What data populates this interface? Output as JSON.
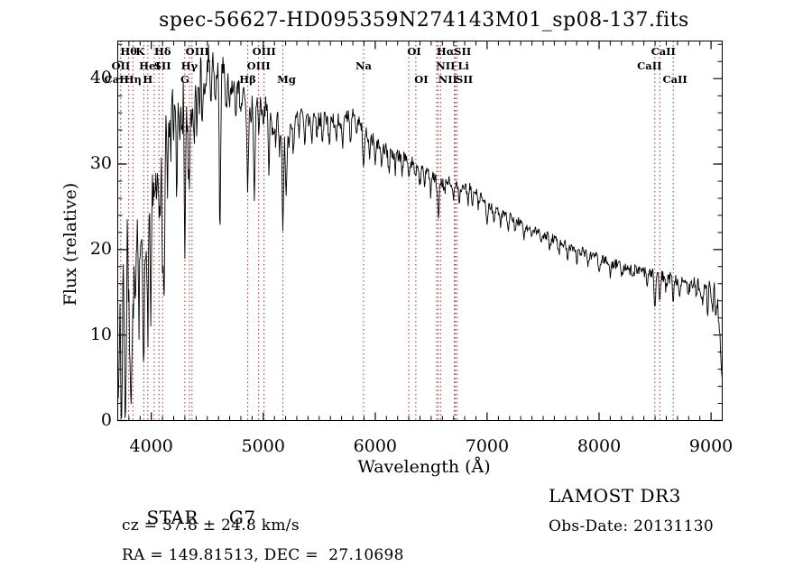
{
  "title": "spec-56627-HD095359N274143M01_sp08-137.fits",
  "colors": {
    "ink": "#000000",
    "background": "#ffffff",
    "marker_line": "#9b3030"
  },
  "footer": {
    "object_type": "STAR",
    "subclass": "G7",
    "cz_text": "cz = 37.8 ± 24.8 km/s",
    "radec_text": "RA = 149.81513, DEC =  27.10698",
    "survey": "LAMOST DR3",
    "obs_date_text": "Obs-Date: 20131130"
  },
  "chart_data": {
    "type": "line",
    "title": "spec-56627-HD095359N274143M01_sp08-137.fits",
    "xlabel": "Wavelength (Å)",
    "ylabel": "Flux (relative)",
    "xlim": [
      3700,
      9100
    ],
    "ylim": [
      0,
      44.4
    ],
    "x_ticks": [
      4000,
      5000,
      6000,
      7000,
      8000,
      9000
    ],
    "y_ticks": [
      0,
      10,
      20,
      30,
      40
    ],
    "x_minor_step": 100,
    "y_minor_step": 2,
    "grid": false,
    "marker_line_color": "#9b3030",
    "spectral_lines": [
      {
        "label": "Hθ",
        "wl": 3798,
        "row": 1
      },
      {
        "label": "K",
        "wl": 3933,
        "row": 1,
        "dx": -4
      },
      {
        "label": "Hδ",
        "wl": 4101,
        "row": 1
      },
      {
        "label": "OIII",
        "wl": 4363,
        "row": 1,
        "dx": 6
      },
      {
        "label": "OIII",
        "wl": 5007,
        "row": 1
      },
      {
        "label": "OI",
        "wl": 6300,
        "row": 1,
        "dx": 6
      },
      {
        "label": "Hα",
        "wl": 6563,
        "row": 1,
        "dx": 8
      },
      {
        "label": "SII",
        "wl": 6716,
        "row": 1,
        "dx": 8
      },
      {
        "label": "CaII",
        "wl": 8542,
        "row": 1,
        "dx": 4
      },
      {
        "label": "OII",
        "wl": 3727,
        "row": 2
      },
      {
        "label": "HeI",
        "wl": 4026,
        "row": 2,
        "dx": -5
      },
      {
        "label": "SII",
        "wl": 4068,
        "row": 2,
        "dx": 4
      },
      {
        "label": "Hγ",
        "wl": 4340,
        "row": 2
      },
      {
        "label": "OIII",
        "wl": 4959,
        "row": 2
      },
      {
        "label": "Na",
        "wl": 5896,
        "row": 2
      },
      {
        "label": "NII",
        "wl": 6548,
        "row": 2,
        "dx": 10
      },
      {
        "label": "Li",
        "wl": 6708,
        "row": 2,
        "dx": 10
      },
      {
        "label": "CaII",
        "wl": 8498,
        "row": 2,
        "dx": -6
      },
      {
        "label": "CaII",
        "wl": 3706,
        "row": 3,
        "dx": -2,
        "no_line": true
      },
      {
        "label": "Hη",
        "wl": 3835,
        "row": 3
      },
      {
        "label": "H",
        "wl": 3968,
        "row": 3
      },
      {
        "label": "G",
        "wl": 4300,
        "row": 3
      },
      {
        "label": "Hβ",
        "wl": 4861,
        "row": 3
      },
      {
        "label": "Mg",
        "wl": 5175,
        "row": 3,
        "dx": 4
      },
      {
        "label": "OI",
        "wl": 6363,
        "row": 3,
        "dx": 6
      },
      {
        "label": "NII",
        "wl": 6584,
        "row": 3,
        "dx": 8
      },
      {
        "label": "SII",
        "wl": 6731,
        "row": 3,
        "dx": 8
      },
      {
        "label": "CaII",
        "wl": 8662,
        "row": 3,
        "dx": 2
      }
    ],
    "series": [
      {
        "name": "flux",
        "continuum": [
          [
            3700,
            24
          ],
          [
            3710,
            30
          ],
          [
            3725,
            32
          ],
          [
            3745,
            33
          ],
          [
            3760,
            31
          ],
          [
            3780,
            33
          ],
          [
            3800,
            31
          ],
          [
            3815,
            29.5
          ],
          [
            3830,
            31
          ],
          [
            3850,
            30
          ],
          [
            3870,
            33
          ],
          [
            3890,
            31
          ],
          [
            3910,
            33
          ],
          [
            3930,
            29
          ],
          [
            3950,
            31
          ],
          [
            3970,
            30
          ],
          [
            3990,
            34
          ],
          [
            4010,
            35
          ],
          [
            4040,
            36
          ],
          [
            4070,
            35
          ],
          [
            4100,
            34
          ],
          [
            4130,
            37
          ],
          [
            4160,
            38
          ],
          [
            4190,
            40
          ],
          [
            4220,
            40
          ],
          [
            4250,
            41
          ],
          [
            4280,
            40
          ],
          [
            4310,
            39
          ],
          [
            4340,
            40
          ],
          [
            4370,
            41
          ],
          [
            4400,
            41.5
          ],
          [
            4430,
            43
          ],
          [
            4460,
            42.5
          ],
          [
            4490,
            42
          ],
          [
            4520,
            43
          ],
          [
            4550,
            42.5
          ],
          [
            4580,
            41
          ],
          [
            4610,
            41.5
          ],
          [
            4640,
            41.5
          ],
          [
            4670,
            40.5
          ],
          [
            4700,
            40
          ],
          [
            4740,
            39
          ],
          [
            4780,
            38.5
          ],
          [
            4820,
            38
          ],
          [
            4861,
            36.5
          ],
          [
            4900,
            38
          ],
          [
            4940,
            37.5
          ],
          [
            4980,
            37
          ],
          [
            5020,
            36.8
          ],
          [
            5060,
            36.4
          ],
          [
            5100,
            36
          ],
          [
            5140,
            35
          ],
          [
            5175,
            33.5
          ],
          [
            5220,
            35
          ],
          [
            5260,
            35.5
          ],
          [
            5300,
            36
          ],
          [
            5350,
            35.6
          ],
          [
            5400,
            35.2
          ],
          [
            5450,
            35.6
          ],
          [
            5500,
            35.3
          ],
          [
            5550,
            35.6
          ],
          [
            5600,
            34.8
          ],
          [
            5650,
            35.2
          ],
          [
            5700,
            34.8
          ],
          [
            5750,
            35.4
          ],
          [
            5800,
            35.8
          ],
          [
            5850,
            35.2
          ],
          [
            5896,
            33.8
          ],
          [
            5930,
            33.6
          ],
          [
            5970,
            33
          ],
          [
            6000,
            32.6
          ],
          [
            6050,
            32
          ],
          [
            6100,
            31.6
          ],
          [
            6150,
            31.2
          ],
          [
            6200,
            31
          ],
          [
            6250,
            30.8
          ],
          [
            6300,
            30.4
          ],
          [
            6350,
            30
          ],
          [
            6400,
            29.6
          ],
          [
            6450,
            29.2
          ],
          [
            6500,
            28.8
          ],
          [
            6540,
            28.2
          ],
          [
            6563,
            27.2
          ],
          [
            6590,
            27.8
          ],
          [
            6620,
            28.2
          ],
          [
            6660,
            28
          ],
          [
            6700,
            27.8
          ],
          [
            6750,
            27.4
          ],
          [
            6800,
            27.2
          ],
          [
            6850,
            27.4
          ],
          [
            6900,
            26.8
          ],
          [
            6950,
            26
          ],
          [
            7000,
            25.2
          ],
          [
            7050,
            24.8
          ],
          [
            7100,
            24.4
          ],
          [
            7150,
            24.2
          ],
          [
            7200,
            23.9
          ],
          [
            7250,
            23.5
          ],
          [
            7300,
            23.1
          ],
          [
            7350,
            22.8
          ],
          [
            7400,
            22.5
          ],
          [
            7450,
            22.2
          ],
          [
            7500,
            21.8
          ],
          [
            7550,
            21.5
          ],
          [
            7600,
            21.2
          ],
          [
            7650,
            20.9
          ],
          [
            7700,
            20.6
          ],
          [
            7750,
            20.3
          ],
          [
            7800,
            20.1
          ],
          [
            7850,
            19.8
          ],
          [
            7900,
            19.5
          ],
          [
            7950,
            19.3
          ],
          [
            8000,
            19
          ],
          [
            8100,
            18.5
          ],
          [
            8200,
            18
          ],
          [
            8300,
            17.6
          ],
          [
            8400,
            17.3
          ],
          [
            8500,
            17.1
          ],
          [
            8600,
            16.8
          ],
          [
            8700,
            16.5
          ],
          [
            8800,
            16.3
          ],
          [
            8850,
            16.4
          ],
          [
            8900,
            16
          ],
          [
            8950,
            15.6
          ],
          [
            9000,
            15.7
          ],
          [
            9040,
            15.2
          ],
          [
            9060,
            14
          ],
          [
            9080,
            9
          ],
          [
            9100,
            5
          ]
        ],
        "absorption": [
          [
            3705,
            20
          ],
          [
            3715,
            12
          ],
          [
            3728,
            16
          ],
          [
            3737,
            24
          ],
          [
            3750,
            10
          ],
          [
            3762,
            14
          ],
          [
            3770,
            22
          ],
          [
            3781,
            9
          ],
          [
            3798,
            13
          ],
          [
            3810,
            14
          ],
          [
            3820,
            22
          ],
          [
            3835,
            16
          ],
          [
            3848,
            9
          ],
          [
            3860,
            15
          ],
          [
            3874,
            7
          ],
          [
            3889,
            19
          ],
          [
            3905,
            8
          ],
          [
            3920,
            11
          ],
          [
            3933,
            21
          ],
          [
            3950,
            9
          ],
          [
            3968,
            19
          ],
          [
            3995,
            23
          ],
          [
            4010,
            6
          ],
          [
            4026,
            7
          ],
          [
            4045,
            9
          ],
          [
            4068,
            9
          ],
          [
            4078,
            6
          ],
          [
            4101,
            13
          ],
          [
            4115,
            18
          ],
          [
            4144,
            8
          ],
          [
            4172,
            6
          ],
          [
            4200,
            5
          ],
          [
            4226,
            12
          ],
          [
            4250,
            6
          ],
          [
            4271,
            7
          ],
          [
            4300,
            17
          ],
          [
            4325,
            6
          ],
          [
            4340,
            13
          ],
          [
            4363,
            6
          ],
          [
            4383,
            9
          ],
          [
            4405,
            6
          ],
          [
            4430,
            5
          ],
          [
            4455,
            6
          ],
          [
            4481,
            4
          ],
          [
            4530,
            5
          ],
          [
            4570,
            4
          ],
          [
            4613,
            19
          ],
          [
            4668,
            5
          ],
          [
            4700,
            3.5
          ],
          [
            4755,
            3.5
          ],
          [
            4800,
            3
          ],
          [
            4861,
            10
          ],
          [
            4890,
            3
          ],
          [
            4920,
            11
          ],
          [
            4957,
            3
          ],
          [
            5000,
            3
          ],
          [
            5050,
            8
          ],
          [
            5085,
            3
          ],
          [
            5110,
            3.5
          ],
          [
            5145,
            3
          ],
          [
            5175,
            11
          ],
          [
            5205,
            8
          ],
          [
            5230,
            3
          ],
          [
            5270,
            4.5
          ],
          [
            5320,
            2.5
          ],
          [
            5370,
            3
          ],
          [
            5430,
            3
          ],
          [
            5480,
            2.5
          ],
          [
            5530,
            2.5
          ],
          [
            5590,
            3
          ],
          [
            5650,
            2.5
          ],
          [
            5710,
            2.5
          ],
          [
            5780,
            3
          ],
          [
            5830,
            2.5
          ],
          [
            5896,
            3.5
          ],
          [
            5950,
            2
          ],
          [
            6000,
            2
          ],
          [
            6060,
            2
          ],
          [
            6122,
            2.5
          ],
          [
            6180,
            1.8
          ],
          [
            6240,
            1.8
          ],
          [
            6300,
            2
          ],
          [
            6360,
            1.8
          ],
          [
            6400,
            2
          ],
          [
            6440,
            1.6
          ],
          [
            6495,
            2.2
          ],
          [
            6563,
            3.6
          ],
          [
            6620,
            1.6
          ],
          [
            6700,
            1.8
          ],
          [
            6750,
            1.6
          ],
          [
            6830,
            1.8
          ],
          [
            6870,
            2.2
          ],
          [
            6920,
            1.6
          ],
          [
            7000,
            1.8
          ],
          [
            7060,
            1.5
          ],
          [
            7120,
            1.5
          ],
          [
            7190,
            2
          ],
          [
            7250,
            1.4
          ],
          [
            7330,
            1.5
          ],
          [
            7400,
            1.4
          ],
          [
            7480,
            1.4
          ],
          [
            7560,
            1.5
          ],
          [
            7640,
            1.4
          ],
          [
            7720,
            1.3
          ],
          [
            7800,
            1.4
          ],
          [
            7900,
            1.3
          ],
          [
            8000,
            1.4
          ],
          [
            8100,
            1.3
          ],
          [
            8200,
            1.5
          ],
          [
            8300,
            1.3
          ],
          [
            8430,
            1.4
          ],
          [
            8498,
            3.2
          ],
          [
            8542,
            3.4
          ],
          [
            8600,
            1.5
          ],
          [
            8662,
            3
          ],
          [
            8720,
            1.5
          ],
          [
            8800,
            1.6
          ],
          [
            8870,
            2
          ],
          [
            8920,
            2.2
          ],
          [
            8970,
            2.4
          ],
          [
            9010,
            2.6
          ],
          [
            9045,
            2.8
          ]
        ],
        "noise_amp": [
          [
            3700,
            3
          ],
          [
            4000,
            2.6
          ],
          [
            4300,
            2.2
          ],
          [
            4500,
            1.8
          ],
          [
            4700,
            1.4
          ],
          [
            5000,
            1.2
          ],
          [
            5400,
            1
          ],
          [
            5800,
            0.9
          ],
          [
            6300,
            0.75
          ],
          [
            7000,
            0.6
          ],
          [
            7600,
            0.55
          ],
          [
            8200,
            0.65
          ],
          [
            8700,
            0.8
          ],
          [
            9000,
            1.1
          ],
          [
            9100,
            1.3
          ]
        ]
      }
    ]
  }
}
